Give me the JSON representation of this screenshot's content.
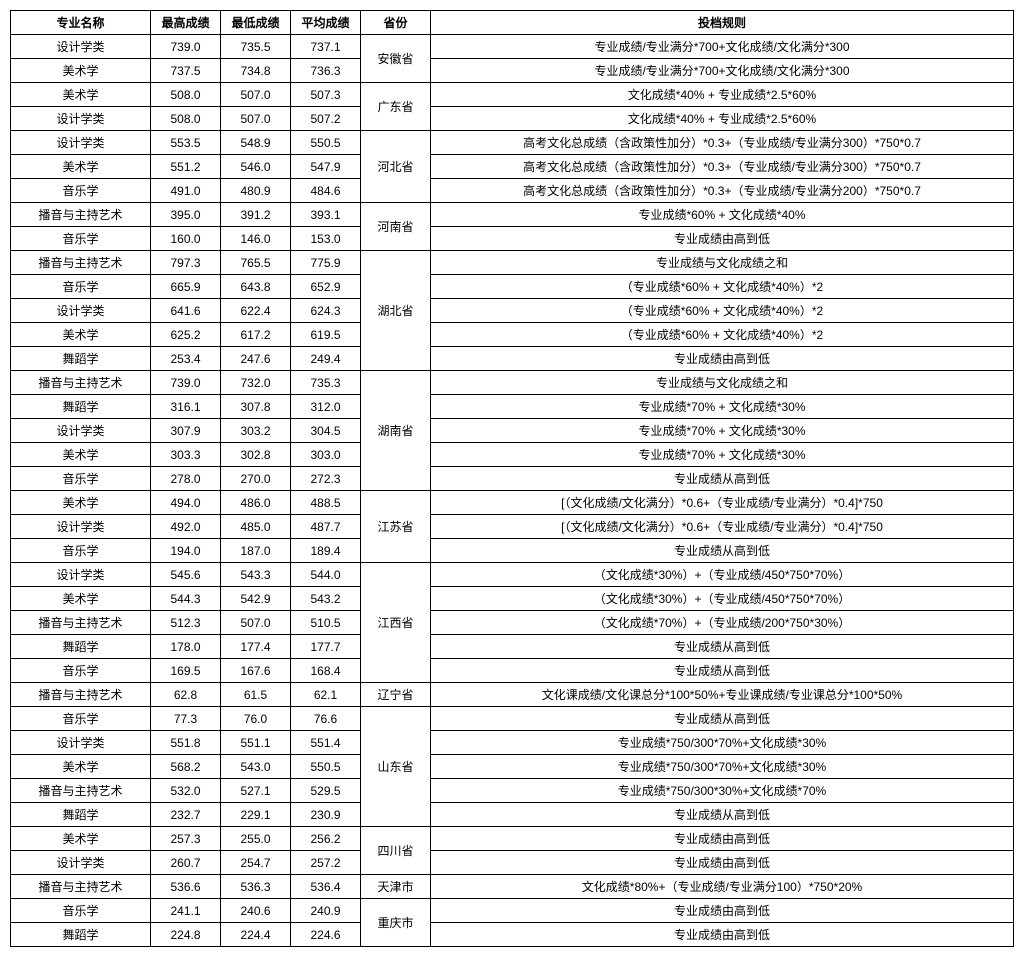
{
  "table": {
    "headers": {
      "name": "专业名称",
      "max": "最高成绩",
      "min": "最低成绩",
      "avg": "平均成绩",
      "province": "省份",
      "rule": "投档规则"
    },
    "rows": [
      {
        "name": "设计学类",
        "max": "739.0",
        "min": "735.5",
        "avg": "737.1",
        "province": "安徽省",
        "prov_span": 2,
        "rule": "专业成绩/专业满分*700+文化成绩/文化满分*300"
      },
      {
        "name": "美术学",
        "max": "737.5",
        "min": "734.8",
        "avg": "736.3",
        "rule": "专业成绩/专业满分*700+文化成绩/文化满分*300"
      },
      {
        "name": "美术学",
        "max": "508.0",
        "min": "507.0",
        "avg": "507.3",
        "province": "广东省",
        "prov_span": 2,
        "rule": "文化成绩*40% + 专业成绩*2.5*60%"
      },
      {
        "name": "设计学类",
        "max": "508.0",
        "min": "507.0",
        "avg": "507.2",
        "rule": "文化成绩*40% + 专业成绩*2.5*60%"
      },
      {
        "name": "设计学类",
        "max": "553.5",
        "min": "548.9",
        "avg": "550.5",
        "province": "河北省",
        "prov_span": 3,
        "rule": "高考文化总成绩（含政策性加分）*0.3+（专业成绩/专业满分300）*750*0.7"
      },
      {
        "name": "美术学",
        "max": "551.2",
        "min": "546.0",
        "avg": "547.9",
        "rule": "高考文化总成绩（含政策性加分）*0.3+（专业成绩/专业满分300）*750*0.7"
      },
      {
        "name": "音乐学",
        "max": "491.0",
        "min": "480.9",
        "avg": "484.6",
        "rule": "高考文化总成绩（含政策性加分）*0.3+（专业成绩/专业满分200）*750*0.7"
      },
      {
        "name": "播音与主持艺术",
        "max": "395.0",
        "min": "391.2",
        "avg": "393.1",
        "province": "河南省",
        "prov_span": 2,
        "rule": "专业成绩*60% + 文化成绩*40%"
      },
      {
        "name": "音乐学",
        "max": "160.0",
        "min": "146.0",
        "avg": "153.0",
        "rule": "专业成绩由高到低"
      },
      {
        "name": "播音与主持艺术",
        "max": "797.3",
        "min": "765.5",
        "avg": "775.9",
        "province": "湖北省",
        "prov_span": 5,
        "rule": "专业成绩与文化成绩之和"
      },
      {
        "name": "音乐学",
        "max": "665.9",
        "min": "643.8",
        "avg": "652.9",
        "rule": "（专业成绩*60% + 文化成绩*40%）*2"
      },
      {
        "name": "设计学类",
        "max": "641.6",
        "min": "622.4",
        "avg": "624.3",
        "rule": "（专业成绩*60% + 文化成绩*40%）*2"
      },
      {
        "name": "美术学",
        "max": "625.2",
        "min": "617.2",
        "avg": "619.5",
        "rule": "（专业成绩*60% + 文化成绩*40%）*2"
      },
      {
        "name": "舞蹈学",
        "max": "253.4",
        "min": "247.6",
        "avg": "249.4",
        "rule": "专业成绩由高到低"
      },
      {
        "name": "播音与主持艺术",
        "max": "739.0",
        "min": "732.0",
        "avg": "735.3",
        "province": "湖南省",
        "prov_span": 5,
        "rule": "专业成绩与文化成绩之和"
      },
      {
        "name": "舞蹈学",
        "max": "316.1",
        "min": "307.8",
        "avg": "312.0",
        "rule": "专业成绩*70% + 文化成绩*30%"
      },
      {
        "name": "设计学类",
        "max": "307.9",
        "min": "303.2",
        "avg": "304.5",
        "rule": "专业成绩*70% + 文化成绩*30%"
      },
      {
        "name": "美术学",
        "max": "303.3",
        "min": "302.8",
        "avg": "303.0",
        "rule": "专业成绩*70% + 文化成绩*30%"
      },
      {
        "name": "音乐学",
        "max": "278.0",
        "min": "270.0",
        "avg": "272.3",
        "rule": "专业成绩从高到低"
      },
      {
        "name": "美术学",
        "max": "494.0",
        "min": "486.0",
        "avg": "488.5",
        "province": "江苏省",
        "prov_span": 3,
        "rule": "[（文化成绩/文化满分）*0.6+（专业成绩/专业满分）*0.4]*750"
      },
      {
        "name": "设计学类",
        "max": "492.0",
        "min": "485.0",
        "avg": "487.7",
        "rule": "[（文化成绩/文化满分）*0.6+（专业成绩/专业满分）*0.4]*750"
      },
      {
        "name": "音乐学",
        "max": "194.0",
        "min": "187.0",
        "avg": "189.4",
        "rule": "专业成绩从高到低"
      },
      {
        "name": "设计学类",
        "max": "545.6",
        "min": "543.3",
        "avg": "544.0",
        "province": "江西省",
        "prov_span": 5,
        "rule": "（文化成绩*30%）+（专业成绩/450*750*70%）"
      },
      {
        "name": "美术学",
        "max": "544.3",
        "min": "542.9",
        "avg": "543.2",
        "rule": "（文化成绩*30%）+（专业成绩/450*750*70%）"
      },
      {
        "name": "播音与主持艺术",
        "max": "512.3",
        "min": "507.0",
        "avg": "510.5",
        "rule": "（文化成绩*70%）+（专业成绩/200*750*30%）"
      },
      {
        "name": "舞蹈学",
        "max": "178.0",
        "min": "177.4",
        "avg": "177.7",
        "rule": "专业成绩从高到低"
      },
      {
        "name": "音乐学",
        "max": "169.5",
        "min": "167.6",
        "avg": "168.4",
        "rule": "专业成绩从高到低"
      },
      {
        "name": "播音与主持艺术",
        "max": "62.8",
        "min": "61.5",
        "avg": "62.1",
        "province": "辽宁省",
        "prov_span": 1,
        "rule": "文化课成绩/文化课总分*100*50%+专业课成绩/专业课总分*100*50%"
      },
      {
        "name": "音乐学",
        "max": "77.3",
        "min": "76.0",
        "avg": "76.6",
        "province": "山东省",
        "prov_span": 5,
        "rule": "专业成绩从高到低"
      },
      {
        "name": "设计学类",
        "max": "551.8",
        "min": "551.1",
        "avg": "551.4",
        "rule": "专业成绩*750/300*70%+文化成绩*30%"
      },
      {
        "name": "美术学",
        "max": "568.2",
        "min": "543.0",
        "avg": "550.5",
        "rule": "专业成绩*750/300*70%+文化成绩*30%"
      },
      {
        "name": "播音与主持艺术",
        "max": "532.0",
        "min": "527.1",
        "avg": "529.5",
        "rule": "专业成绩*750/300*30%+文化成绩*70%"
      },
      {
        "name": "舞蹈学",
        "max": "232.7",
        "min": "229.1",
        "avg": "230.9",
        "rule": "专业成绩从高到低"
      },
      {
        "name": "美术学",
        "max": "257.3",
        "min": "255.0",
        "avg": "256.2",
        "province": "四川省",
        "prov_span": 2,
        "rule": "专业成绩由高到低"
      },
      {
        "name": "设计学类",
        "max": "260.7",
        "min": "254.7",
        "avg": "257.2",
        "rule": "专业成绩由高到低"
      },
      {
        "name": "播音与主持艺术",
        "max": "536.6",
        "min": "536.3",
        "avg": "536.4",
        "province": "天津市",
        "prov_span": 1,
        "rule": "文化成绩*80%+（专业成绩/专业满分100）*750*20%"
      },
      {
        "name": "音乐学",
        "max": "241.1",
        "min": "240.6",
        "avg": "240.9",
        "province": "重庆市",
        "prov_span": 2,
        "rule": "专业成绩由高到低"
      },
      {
        "name": "舞蹈学",
        "max": "224.8",
        "min": "224.4",
        "avg": "224.6",
        "rule": "专业成绩由高到低"
      }
    ]
  }
}
